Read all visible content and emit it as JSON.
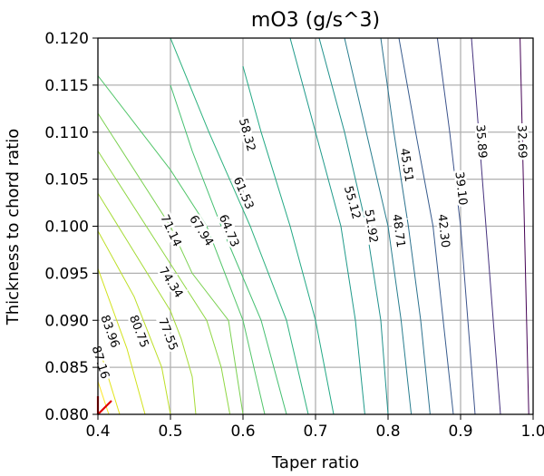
{
  "chart_data": {
    "type": "contour",
    "title": "mO3 (g/s^3)",
    "xlabel": "Taper ratio",
    "ylabel": "Thickness to chord ratio",
    "xlim": [
      0.4,
      1.0
    ],
    "ylim": [
      0.08,
      0.12
    ],
    "xticks": [
      "0.4",
      "0.5",
      "0.6",
      "0.7",
      "0.8",
      "0.9",
      "1.0"
    ],
    "yticks": [
      "0.080",
      "0.085",
      "0.090",
      "0.095",
      "0.100",
      "0.105",
      "0.110",
      "0.115",
      "0.120"
    ],
    "grid": true,
    "marker_color": "#e00000",
    "marker_point": [
      0.4,
      0.08
    ],
    "contour_levels": [
      {
        "value": "32.69",
        "color": "#440154",
        "label_pos": [
          0.984,
          0.109
        ],
        "points": [
          [
            0.982,
            0.12
          ],
          [
            0.985,
            0.11
          ],
          [
            0.988,
            0.1
          ],
          [
            0.991,
            0.09
          ],
          [
            0.994,
            0.08
          ]
        ]
      },
      {
        "value": "35.89",
        "color": "#46327e",
        "label_pos": [
          0.928,
          0.109
        ],
        "points": [
          [
            0.915,
            0.12
          ],
          [
            0.925,
            0.11
          ],
          [
            0.935,
            0.1
          ],
          [
            0.945,
            0.09
          ],
          [
            0.955,
            0.08
          ]
        ]
      },
      {
        "value": "39.10",
        "color": "#3b528b",
        "label_pos": [
          0.9,
          0.104
        ],
        "points": [
          [
            0.868,
            0.12
          ],
          [
            0.885,
            0.11
          ],
          [
            0.9,
            0.1
          ],
          [
            0.91,
            0.09
          ],
          [
            0.92,
            0.08
          ]
        ]
      },
      {
        "value": "42.30",
        "color": "#375b8d",
        "label_pos": [
          0.876,
          0.0995
        ],
        "points": [
          [
            0.815,
            0.12
          ],
          [
            0.838,
            0.11
          ],
          [
            0.862,
            0.1
          ],
          [
            0.876,
            0.09
          ],
          [
            0.89,
            0.08
          ]
        ]
      },
      {
        "value": "45.51",
        "color": "#2c728e",
        "label_pos": [
          0.825,
          0.1065
        ],
        "points": [
          [
            0.79,
            0.12
          ],
          [
            0.808,
            0.11
          ],
          [
            0.828,
            0.1
          ],
          [
            0.845,
            0.09
          ],
          [
            0.858,
            0.08
          ]
        ]
      },
      {
        "value": "48.71",
        "color": "#287d8e",
        "label_pos": [
          0.814,
          0.0995
        ],
        "points": [
          [
            0.74,
            0.12
          ],
          [
            0.77,
            0.11
          ],
          [
            0.8,
            0.1
          ],
          [
            0.818,
            0.09
          ],
          [
            0.832,
            0.08
          ]
        ]
      },
      {
        "value": "51.92",
        "color": "#21918c",
        "label_pos": [
          0.776,
          0.1
        ],
        "points": [
          [
            0.705,
            0.12
          ],
          [
            0.74,
            0.11
          ],
          [
            0.77,
            0.1
          ],
          [
            0.79,
            0.09
          ],
          [
            0.8,
            0.08
          ]
        ]
      },
      {
        "value": "55.12",
        "color": "#1f9a8a",
        "label_pos": [
          0.75,
          0.1025
        ],
        "points": [
          [
            0.665,
            0.12
          ],
          [
            0.7,
            0.11
          ],
          [
            0.735,
            0.1
          ],
          [
            0.755,
            0.09
          ],
          [
            0.768,
            0.08
          ]
        ]
      },
      {
        "value": "58.32",
        "color": "#22a884",
        "label_pos": [
          0.605,
          0.1097
        ],
        "points": [
          [
            0.6,
            0.117
          ],
          [
            0.625,
            0.11
          ],
          [
            0.665,
            0.1
          ],
          [
            0.7,
            0.09
          ],
          [
            0.725,
            0.08
          ]
        ]
      },
      {
        "value": "61.53",
        "color": "#2cb17e",
        "label_pos": [
          0.6,
          0.1035
        ],
        "points": [
          [
            0.5,
            0.12
          ],
          [
            0.553,
            0.11
          ],
          [
            0.61,
            0.1
          ],
          [
            0.66,
            0.09
          ],
          [
            0.69,
            0.08
          ]
        ]
      },
      {
        "value": "64.73",
        "color": "#44bf70",
        "label_pos": [
          0.58,
          0.0995
        ],
        "points": [
          [
            0.5,
            0.115
          ],
          [
            0.53,
            0.108
          ],
          [
            0.57,
            0.1
          ],
          [
            0.625,
            0.09
          ],
          [
            0.66,
            0.08
          ]
        ]
      },
      {
        "value": "67.94",
        "color": "#52c569",
        "label_pos": [
          0.542,
          0.0995
        ],
        "points": [
          [
            0.4,
            0.116
          ],
          [
            0.5,
            0.106
          ],
          [
            0.55,
            0.1
          ],
          [
            0.6,
            0.09
          ],
          [
            0.63,
            0.08
          ]
        ]
      },
      {
        "value": "71.14",
        "color": "#7ad151",
        "label_pos": [
          0.5,
          0.0995
        ],
        "points": [
          [
            0.4,
            0.112
          ],
          [
            0.5,
            0.1
          ],
          [
            0.53,
            0.095
          ],
          [
            0.58,
            0.09
          ],
          [
            0.6,
            0.08
          ]
        ]
      },
      {
        "value": "74.34",
        "color": "#8fd744",
        "label_pos": [
          0.5,
          0.094
        ],
        "points": [
          [
            0.4,
            0.108
          ],
          [
            0.5,
            0.096
          ],
          [
            0.55,
            0.09
          ],
          [
            0.57,
            0.085
          ],
          [
            0.582,
            0.08
          ]
        ]
      },
      {
        "value": "77.55",
        "color": "#a5db36",
        "label_pos": [
          0.496,
          0.0885
        ],
        "points": [
          [
            0.4,
            0.1035
          ],
          [
            0.5,
            0.091
          ],
          [
            0.515,
            0.088
          ],
          [
            0.53,
            0.084
          ],
          [
            0.535,
            0.08
          ]
        ]
      },
      {
        "value": "80.75",
        "color": "#bddf26",
        "label_pos": [
          0.456,
          0.0888
        ],
        "points": [
          [
            0.4,
            0.0995
          ],
          [
            0.45,
            0.0925
          ],
          [
            0.488,
            0.085
          ],
          [
            0.5,
            0.08
          ]
        ]
      },
      {
        "value": "83.96",
        "color": "#d2e21b",
        "label_pos": [
          0.416,
          0.0888
        ],
        "points": [
          [
            0.4,
            0.0955
          ],
          [
            0.44,
            0.087
          ],
          [
            0.465,
            0.08
          ]
        ]
      },
      {
        "value": "87.16",
        "color": "#e2e418",
        "label_pos": [
          0.403,
          0.0855
        ],
        "points": [
          [
            0.4,
            0.0875
          ],
          [
            0.43,
            0.08
          ]
        ]
      },
      {
        "value": "",
        "color": "#fde725",
        "label_pos": null,
        "points": [
          [
            0.4,
            0.0835
          ],
          [
            0.415,
            0.08
          ]
        ]
      }
    ]
  }
}
